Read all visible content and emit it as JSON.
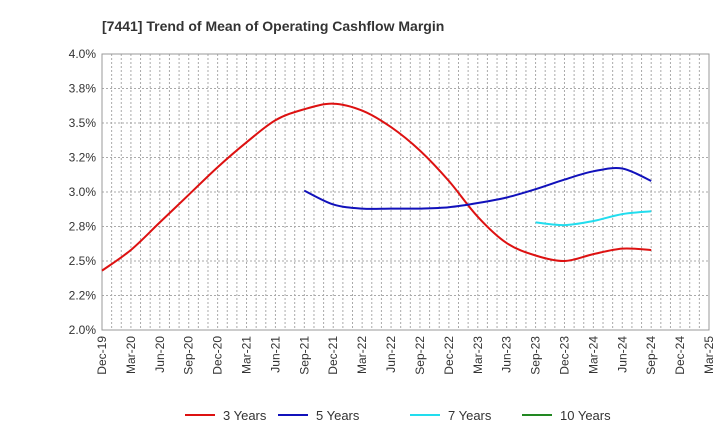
{
  "chart_data": {
    "type": "line",
    "title": "[7441]  Trend of Mean of Operating Cashflow Margin",
    "ylim": [
      2.0,
      4.0
    ],
    "y_ticks": [
      "4.0%",
      "3.8%",
      "3.5%",
      "3.2%",
      "3.0%",
      "2.8%",
      "2.5%",
      "2.2%",
      "2.0%"
    ],
    "y_tick_values": [
      4.0,
      3.75,
      3.5,
      3.25,
      3.0,
      2.75,
      2.5,
      2.25,
      2.0
    ],
    "x_ticks": [
      "Dec-19",
      "Mar-20",
      "Jun-20",
      "Sep-20",
      "Dec-20",
      "Mar-21",
      "Jun-21",
      "Sep-21",
      "Dec-21",
      "Mar-22",
      "Jun-22",
      "Sep-22",
      "Dec-22",
      "Mar-23",
      "Jun-23",
      "Sep-23",
      "Dec-23",
      "Mar-24",
      "Jun-24",
      "Sep-24",
      "Dec-24",
      "Mar-25"
    ],
    "grid": true,
    "legend_position": "bottom",
    "series": [
      {
        "name": "3 Years",
        "color": "#dd1111",
        "points": [
          [
            "Dec-19",
            2.43
          ],
          [
            "Mar-20",
            2.58
          ],
          [
            "Jun-20",
            2.78
          ],
          [
            "Sep-20",
            2.98
          ],
          [
            "Dec-20",
            3.18
          ],
          [
            "Mar-21",
            3.36
          ],
          [
            "Jun-21",
            3.52
          ],
          [
            "Sep-21",
            3.6
          ],
          [
            "Dec-21",
            3.64
          ],
          [
            "Mar-22",
            3.59
          ],
          [
            "Jun-22",
            3.47
          ],
          [
            "Sep-22",
            3.3
          ],
          [
            "Dec-22",
            3.08
          ],
          [
            "Mar-23",
            2.82
          ],
          [
            "Jun-23",
            2.63
          ],
          [
            "Sep-23",
            2.54
          ],
          [
            "Dec-23",
            2.5
          ],
          [
            "Mar-24",
            2.55
          ],
          [
            "Jun-24",
            2.59
          ],
          [
            "Sep-24",
            2.58
          ]
        ]
      },
      {
        "name": "5 Years",
        "color": "#1111bb",
        "points": [
          [
            "Sep-21",
            3.01
          ],
          [
            "Dec-21",
            2.91
          ],
          [
            "Mar-22",
            2.88
          ],
          [
            "Jun-22",
            2.88
          ],
          [
            "Sep-22",
            2.88
          ],
          [
            "Dec-22",
            2.89
          ],
          [
            "Mar-23",
            2.92
          ],
          [
            "Jun-23",
            2.96
          ],
          [
            "Sep-23",
            3.02
          ],
          [
            "Dec-23",
            3.09
          ],
          [
            "Mar-24",
            3.15
          ],
          [
            "Jun-24",
            3.17
          ],
          [
            "Sep-24",
            3.08
          ]
        ]
      },
      {
        "name": "7 Years",
        "color": "#22ddee",
        "points": [
          [
            "Sep-23",
            2.78
          ],
          [
            "Dec-23",
            2.76
          ],
          [
            "Mar-24",
            2.79
          ],
          [
            "Jun-24",
            2.84
          ],
          [
            "Sep-24",
            2.86
          ]
        ]
      },
      {
        "name": "10 Years",
        "color": "#228822",
        "points": []
      }
    ]
  }
}
